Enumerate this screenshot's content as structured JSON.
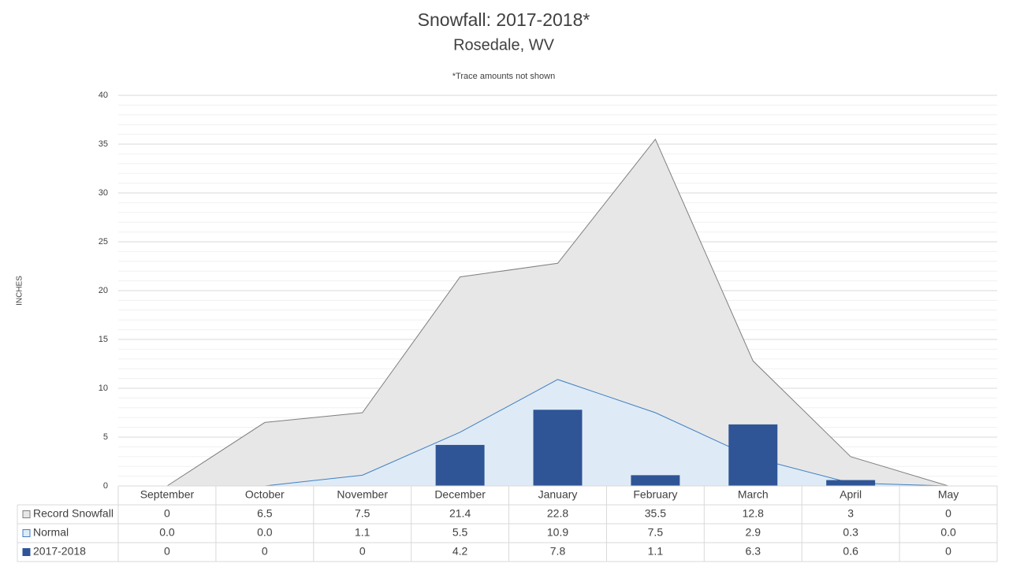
{
  "chart_data": {
    "type": "combo",
    "title": "Snowfall: 2017-2018*",
    "subtitle": "Rosedale, WV",
    "note": "*Trace amounts not shown",
    "y_label": "INCHES",
    "categories": [
      "September",
      "October",
      "November",
      "December",
      "January",
      "February",
      "March",
      "April",
      "May"
    ],
    "series": [
      {
        "name": "Record Snowfall",
        "type": "area",
        "color": "#e7e7e7",
        "line_color": "#7f7f7f",
        "values": [
          0,
          6.5,
          7.5,
          21.4,
          22.8,
          35.5,
          12.8,
          3,
          0
        ]
      },
      {
        "name": "Normal",
        "type": "area",
        "color": "#deebf7",
        "line_color": "#3f7fc4",
        "values": [
          0.0,
          0.0,
          1.1,
          5.5,
          10.9,
          7.5,
          2.9,
          0.3,
          0.0
        ],
        "value_labels": [
          "0.0",
          "0.0",
          "1.1",
          "5.5",
          "10.9",
          "7.5",
          "2.9",
          "0.3",
          "0.0"
        ]
      },
      {
        "name": "2017-2018",
        "type": "bar",
        "color": "#2f5597",
        "values": [
          0,
          0,
          0,
          4.2,
          7.8,
          1.1,
          6.3,
          0.6,
          0
        ]
      }
    ],
    "ylim": [
      0,
      40
    ],
    "yticks": [
      0,
      5,
      10,
      15,
      20,
      25,
      30,
      35,
      40
    ],
    "grid": true,
    "minor_grid": true,
    "data_table": true
  }
}
